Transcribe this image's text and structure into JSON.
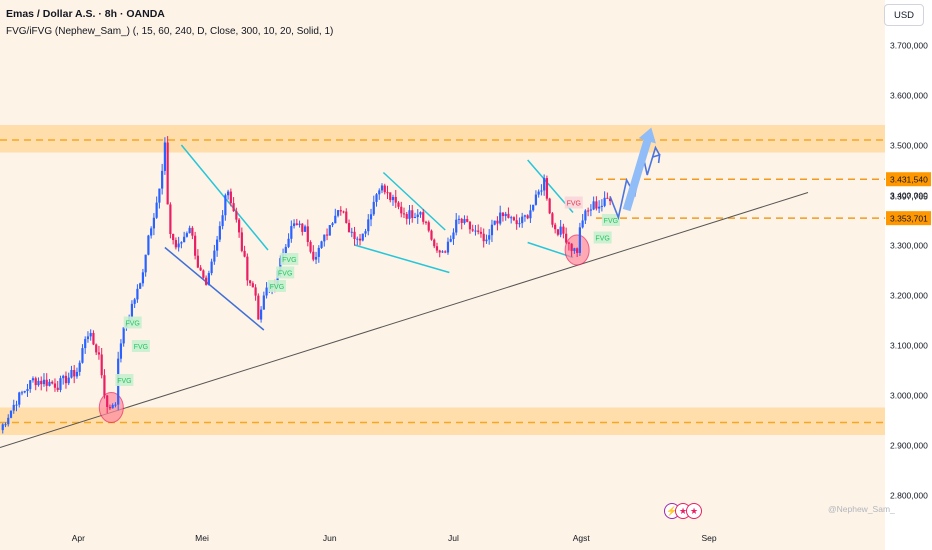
{
  "header": {
    "title": "Emas / Dollar A.S. · 8h · OANDA",
    "indicator": "FVG/iFVG (Nephew_Sam_) (, 15, 60, 240, D, Close, 300, 10, 20, Solid, 1)"
  },
  "currency_button": "USD",
  "watermark": "@Nephew_Sam_",
  "colors": {
    "background": "#ffffff",
    "pane": "#fdf3e6",
    "zone": "#ffd9a1",
    "zone_line": "#f5a623",
    "up_candle": "#2962ff",
    "down_candle": "#e91e63",
    "trendline": "#555555",
    "wedge_upper": "#26c6da",
    "wedge_lower": "#3f6fd8",
    "fvg_bull_bg": "#c8f0d0",
    "fvg_bull_text": "#22c55e",
    "fvg_bear_text": "#e53950",
    "label_bg": "#ff9800",
    "projection": "#4a74e0",
    "big_arrow": "#90bdf7",
    "circle": "#ff8aa0"
  },
  "chart_data": {
    "type": "candlestick",
    "xlabel": "",
    "ylabel": "",
    "x_ticks": [
      "Apr",
      "Mei",
      "Jun",
      "Jul",
      "Agst",
      "Sep"
    ],
    "y_ticks": [
      "3.700,000",
      "3.600,000",
      "3.500,000",
      "3.400,000",
      "3.300,000",
      "3.200,000",
      "3.100,000",
      "3.000,000",
      "2.900,000",
      "2.800,000"
    ],
    "y_tick_values": [
      3700,
      3600,
      3500,
      3400,
      3300,
      3200,
      3100,
      3000,
      2900,
      2800
    ],
    "ylim": [
      2740,
      3790
    ],
    "grid": false,
    "price_labels": [
      {
        "text": "3.431,540",
        "value": 3431.54,
        "highlight": true
      },
      {
        "text": "3.397,765",
        "value": 3397.765,
        "highlight": false
      },
      {
        "text": "3.353,701",
        "value": 3353.701,
        "highlight": true
      }
    ],
    "zones": [
      {
        "name": "resistance",
        "from": 3485,
        "to": 3540,
        "line": 3510
      },
      {
        "name": "support",
        "from": 2920,
        "to": 2975,
        "line": 2945
      }
    ],
    "dashed_levels": [
      3431.54,
      3353.701
    ],
    "price_path": [
      [
        "2025-03-13",
        2930
      ],
      [
        "2025-03-17",
        2990
      ],
      [
        "2025-03-21",
        3030
      ],
      [
        "2025-03-25",
        3025
      ],
      [
        "2025-03-27",
        3020
      ],
      [
        "2025-04-01",
        3050
      ],
      [
        "2025-04-03",
        3130
      ],
      [
        "2025-04-06",
        3080
      ],
      [
        "2025-04-08",
        2970
      ],
      [
        "2025-04-10",
        2990
      ],
      [
        "2025-04-11",
        3100
      ],
      [
        "2025-04-14",
        3180
      ],
      [
        "2025-04-16",
        3220
      ],
      [
        "2025-04-18",
        3320
      ],
      [
        "2025-04-21",
        3420
      ],
      [
        "2025-04-22",
        3495
      ],
      [
        "2025-04-23",
        3330
      ],
      [
        "2025-04-25",
        3290
      ],
      [
        "2025-04-28",
        3340
      ],
      [
        "2025-04-30",
        3260
      ],
      [
        "2025-05-02",
        3210
      ],
      [
        "2025-05-05",
        3320
      ],
      [
        "2025-05-07",
        3420
      ],
      [
        "2025-05-09",
        3360
      ],
      [
        "2025-05-12",
        3240
      ],
      [
        "2025-05-14",
        3200
      ],
      [
        "2025-05-15",
        3140
      ],
      [
        "2025-05-16",
        3200
      ],
      [
        "2025-05-19",
        3230
      ],
      [
        "2025-05-21",
        3300
      ],
      [
        "2025-05-23",
        3340
      ],
      [
        "2025-05-26",
        3330
      ],
      [
        "2025-05-28",
        3280
      ],
      [
        "2025-05-30",
        3300
      ],
      [
        "2025-06-02",
        3360
      ],
      [
        "2025-06-04",
        3380
      ],
      [
        "2025-06-06",
        3320
      ],
      [
        "2025-06-09",
        3320
      ],
      [
        "2025-06-11",
        3370
      ],
      [
        "2025-06-13",
        3420
      ],
      [
        "2025-06-16",
        3390
      ],
      [
        "2025-06-18",
        3370
      ],
      [
        "2025-06-20",
        3360
      ],
      [
        "2025-06-23",
        3370
      ],
      [
        "2025-06-25",
        3330
      ],
      [
        "2025-06-27",
        3280
      ],
      [
        "2025-06-30",
        3300
      ],
      [
        "2025-07-02",
        3350
      ],
      [
        "2025-07-04",
        3340
      ],
      [
        "2025-07-07",
        3320
      ],
      [
        "2025-07-09",
        3300
      ],
      [
        "2025-07-11",
        3350
      ],
      [
        "2025-07-14",
        3360
      ],
      [
        "2025-07-16",
        3340
      ],
      [
        "2025-07-18",
        3350
      ],
      [
        "2025-07-21",
        3390
      ],
      [
        "2025-07-23",
        3430
      ],
      [
        "2025-07-25",
        3340
      ],
      [
        "2025-07-28",
        3320
      ],
      [
        "2025-07-30",
        3290
      ],
      [
        "2025-07-31",
        3290
      ],
      [
        "2025-08-01",
        3350
      ],
      [
        "2025-08-04",
        3380
      ],
      [
        "2025-08-06",
        3380
      ],
      [
        "2025-08-08",
        3397
      ]
    ],
    "trendlines": [
      {
        "name": "rising-support",
        "points": [
          [
            "2025-03-13",
            2895
          ],
          [
            "2025-09-25",
            3405
          ]
        ]
      },
      {
        "name": "wedge1-upper",
        "points": [
          [
            "2025-04-26",
            3500
          ],
          [
            "2025-05-17",
            3290
          ]
        ]
      },
      {
        "name": "wedge1-lower",
        "points": [
          [
            "2025-04-22",
            3295
          ],
          [
            "2025-05-16",
            3130
          ]
        ]
      },
      {
        "name": "wedge2-upper",
        "points": [
          [
            "2025-06-14",
            3445
          ],
          [
            "2025-06-29",
            3330
          ]
        ]
      },
      {
        "name": "wedge2-lower",
        "points": [
          [
            "2025-06-07",
            3300
          ],
          [
            "2025-06-30",
            3245
          ]
        ]
      },
      {
        "name": "wedge3-upper",
        "points": [
          [
            "2025-07-19",
            3470
          ],
          [
            "2025-07-30",
            3365
          ]
        ]
      },
      {
        "name": "wedge3-lower",
        "points": [
          [
            "2025-07-19",
            3305
          ],
          [
            "2025-07-30",
            3275
          ]
        ]
      }
    ],
    "fvg": [
      {
        "label": "FVG",
        "kind": "bullish",
        "date": "2025-04-12",
        "value": 3145
      },
      {
        "label": "FVG",
        "kind": "bullish",
        "date": "2025-04-14",
        "value": 3098
      },
      {
        "label": "FVG",
        "kind": "bullish",
        "date": "2025-04-10",
        "value": 3030
      },
      {
        "label": "FVG",
        "kind": "bullish",
        "date": "2025-05-20",
        "value": 3272
      },
      {
        "label": "FVG",
        "kind": "bullish",
        "date": "2025-05-19",
        "value": 3245
      },
      {
        "label": "FVG",
        "kind": "bullish",
        "date": "2025-05-17",
        "value": 3218
      },
      {
        "label": "FVG",
        "kind": "bearish",
        "date": "2025-07-28",
        "value": 3385
      },
      {
        "label": "FVG",
        "kind": "bullish",
        "date": "2025-08-06",
        "value": 3350
      },
      {
        "label": "FVG",
        "kind": "bullish",
        "date": "2025-08-04",
        "value": 3315
      }
    ],
    "circles": [
      {
        "date": "2025-04-09",
        "value": 2975
      },
      {
        "date": "2025-07-31",
        "value": 3290
      }
    ],
    "projection_path": [
      [
        "2025-08-08",
        3397
      ],
      [
        "2025-08-10",
        3355
      ],
      [
        "2025-08-12",
        3430
      ],
      [
        "2025-08-14",
        3400
      ],
      [
        "2025-08-16",
        3478
      ],
      [
        "2025-08-17",
        3440
      ],
      [
        "2025-08-19",
        3495
      ],
      [
        "2025-08-20",
        3480
      ]
    ],
    "projection_arrow": [
      [
        "2025-08-12",
        3370
      ],
      [
        "2025-08-18",
        3535
      ]
    ]
  }
}
